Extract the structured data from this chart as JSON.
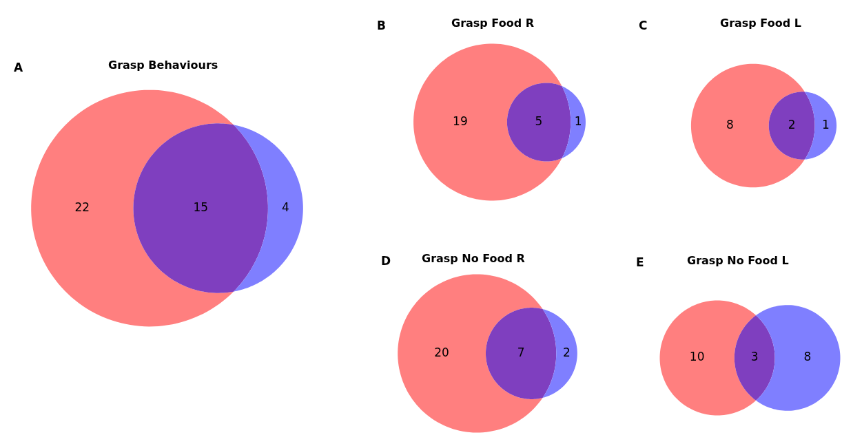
{
  "chart_data": [
    {
      "type": "other",
      "title": "Grasp Behaviours",
      "annotations": [
        "A"
      ],
      "categories": [
        null,
        null,
        null
      ],
      "values": [
        22,
        15,
        4
      ],
      "colors": [
        "#ff7f7f",
        "#7f3fbf",
        "#7f7fff"
      ],
      "data_labels": true
    },
    {
      "type": "other",
      "title": "Grasp Food R",
      "annotations": [
        "B"
      ],
      "categories": [
        null,
        null,
        null
      ],
      "values": [
        19,
        5,
        1
      ],
      "colors": [
        "#ff7f7f",
        "#7f3fbf",
        "#7f7fff"
      ],
      "data_labels": true
    },
    {
      "type": "other",
      "title": "Grasp Food L",
      "annotations": [
        "C"
      ],
      "categories": [
        null,
        null,
        null
      ],
      "values": [
        8,
        2,
        1
      ],
      "colors": [
        "#ff7f7f",
        "#7f3fbf",
        "#7f7fff"
      ],
      "data_labels": true
    },
    {
      "type": "other",
      "title": "Grasp No Food R",
      "annotations": [
        "D"
      ],
      "categories": [
        null,
        null,
        null
      ],
      "values": [
        20,
        7,
        2
      ],
      "colors": [
        "#ff7f7f",
        "#7f3fbf",
        "#7f7fff"
      ],
      "data_labels": true
    },
    {
      "type": "other",
      "title": "Grasp No Food L",
      "annotations": [
        "E"
      ],
      "categories": [
        null,
        null,
        null
      ],
      "values": [
        10,
        3,
        8
      ],
      "colors": [
        "#ff7f7f",
        "#7f3fbf",
        "#7f7fff"
      ],
      "data_labels": true
    }
  ]
}
